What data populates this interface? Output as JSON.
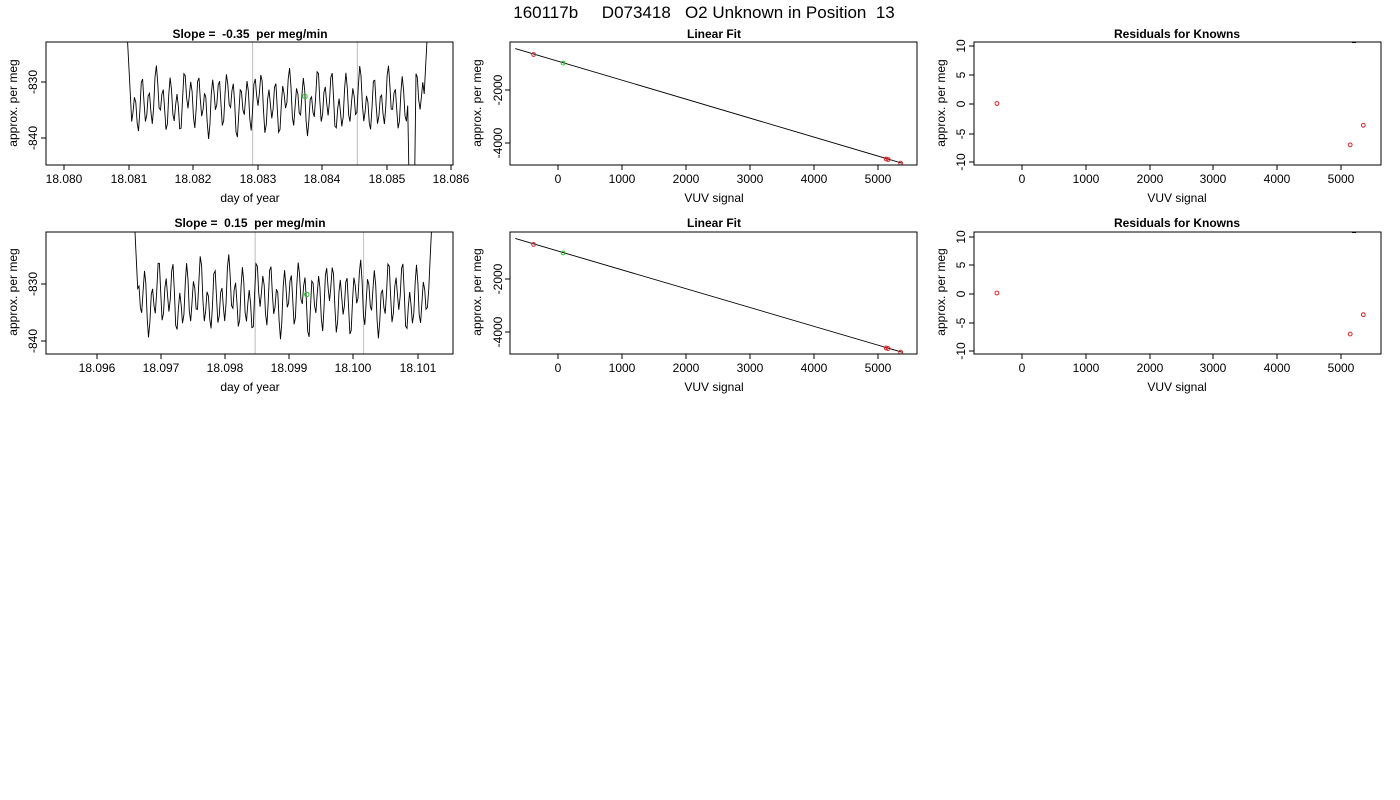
{
  "figure_title": "160117b     D073418   O2 Unknown in Position  13",
  "colors": {
    "frame": "#000000",
    "line": "#000000",
    "vline": "#c8c8c8",
    "known": "#e0242a",
    "unknown": "#22c322"
  },
  "chart_data": [
    {
      "type": "line",
      "title": "Slope =  -0.35  per meg/min",
      "xlabel": "day of year",
      "ylabel": "approx. per meg",
      "xlim": [
        18.0796,
        18.0862
      ],
      "ylim": [
        -844.5,
        -823
      ],
      "xticks": [
        "18.080",
        "18.081",
        "18.082",
        "18.083",
        "18.084",
        "18.085",
        "18.086"
      ],
      "yticks": [
        "-830",
        "-840"
      ],
      "signal": {
        "x_start": 18.0809,
        "x_end": 18.0858,
        "base": -833.5,
        "amplitude": 3.6,
        "edge_high": -818,
        "dip": -847.5
      },
      "markers": [
        {
          "x": 18.08295
        },
        {
          "x": 18.08465
        }
      ],
      "unknown_point": {
        "x": 18.0838,
        "y": -832.5
      }
    },
    {
      "type": "scatter",
      "title": "Linear Fit",
      "xlabel": "VUV signal",
      "ylabel": "approx. per meg",
      "xlim": [
        -580,
        5630
      ],
      "ylim": [
        -4970,
        -250
      ],
      "xticks": [
        "0",
        "1000",
        "2000",
        "3000",
        "4000",
        "5000"
      ],
      "yticks": [
        "-2000",
        "-4000"
      ],
      "fit": {
        "x": [
          -500,
          5400
        ],
        "y": [
          -500,
          -4900
        ]
      },
      "knowns": [
        {
          "x": -220,
          "y": -730
        },
        {
          "x": 5160,
          "y": -4740
        },
        {
          "x": 5190,
          "y": -4760
        },
        {
          "x": 5380,
          "y": -4900
        }
      ],
      "unknown": {
        "x": 230,
        "y": -1060
      }
    },
    {
      "type": "scatter",
      "title": "Residuals for Knowns",
      "xlabel": "VUV signal",
      "ylabel": "approx. per meg",
      "xlim": [
        -580,
        5630
      ],
      "ylim": [
        -11,
        11
      ],
      "xticks": [
        "0",
        "1000",
        "2000",
        "3000",
        "4000",
        "5000"
      ],
      "yticks": [
        "10",
        "5",
        "0",
        "-5",
        "-10"
      ],
      "knowns": [
        {
          "x": -230,
          "y": 0
        },
        {
          "x": 5160,
          "y": -7.4
        },
        {
          "x": 5360,
          "y": -3.9
        }
      ]
    },
    {
      "type": "line",
      "title": "Slope =  0.15  per meg/min",
      "xlabel": "day of year",
      "ylabel": "approx. per meg",
      "xlim": [
        18.09526,
        18.10172
      ],
      "ylim": [
        -842,
        -820.5
      ],
      "xticks": [
        "18.096",
        "18.097",
        "18.098",
        "18.099",
        "18.100",
        "18.101"
      ],
      "yticks": [
        "-830",
        "-840"
      ],
      "signal": {
        "x_start": 18.09665,
        "x_end": 18.1014,
        "base": -832.0,
        "amplitude": 4.2,
        "edge_high": -815,
        "dip": null
      },
      "markers": [
        {
          "x": 18.09858
        },
        {
          "x": 18.1003
        }
      ],
      "unknown_point": {
        "x": 18.0994,
        "y": -831.5
      }
    },
    {
      "type": "scatter",
      "title": "Linear Fit",
      "xlabel": "VUV signal",
      "ylabel": "approx. per meg",
      "xlim": [
        -580,
        5630
      ],
      "ylim": [
        -4970,
        -250
      ],
      "xticks": [
        "0",
        "1000",
        "2000",
        "3000",
        "4000",
        "5000"
      ],
      "yticks": [
        "-2000",
        "-4000"
      ],
      "fit": {
        "x": [
          -500,
          5400
        ],
        "y": [
          -500,
          -4900
        ]
      },
      "knowns": [
        {
          "x": -220,
          "y": -730
        },
        {
          "x": 5160,
          "y": -4740
        },
        {
          "x": 5190,
          "y": -4760
        },
        {
          "x": 5380,
          "y": -4900
        }
      ],
      "unknown": {
        "x": 230,
        "y": -1060
      }
    },
    {
      "type": "scatter",
      "title": "Residuals for Knowns",
      "xlabel": "VUV signal",
      "ylabel": "approx. per meg",
      "xlim": [
        -580,
        5630
      ],
      "ylim": [
        -11,
        11
      ],
      "xticks": [
        "0",
        "1000",
        "2000",
        "3000",
        "4000",
        "5000"
      ],
      "yticks": [
        "10",
        "5",
        "0",
        "-5",
        "-10"
      ],
      "knowns": [
        {
          "x": -230,
          "y": 0
        },
        {
          "x": 5160,
          "y": -7.4
        },
        {
          "x": 5360,
          "y": -3.9
        }
      ]
    }
  ]
}
